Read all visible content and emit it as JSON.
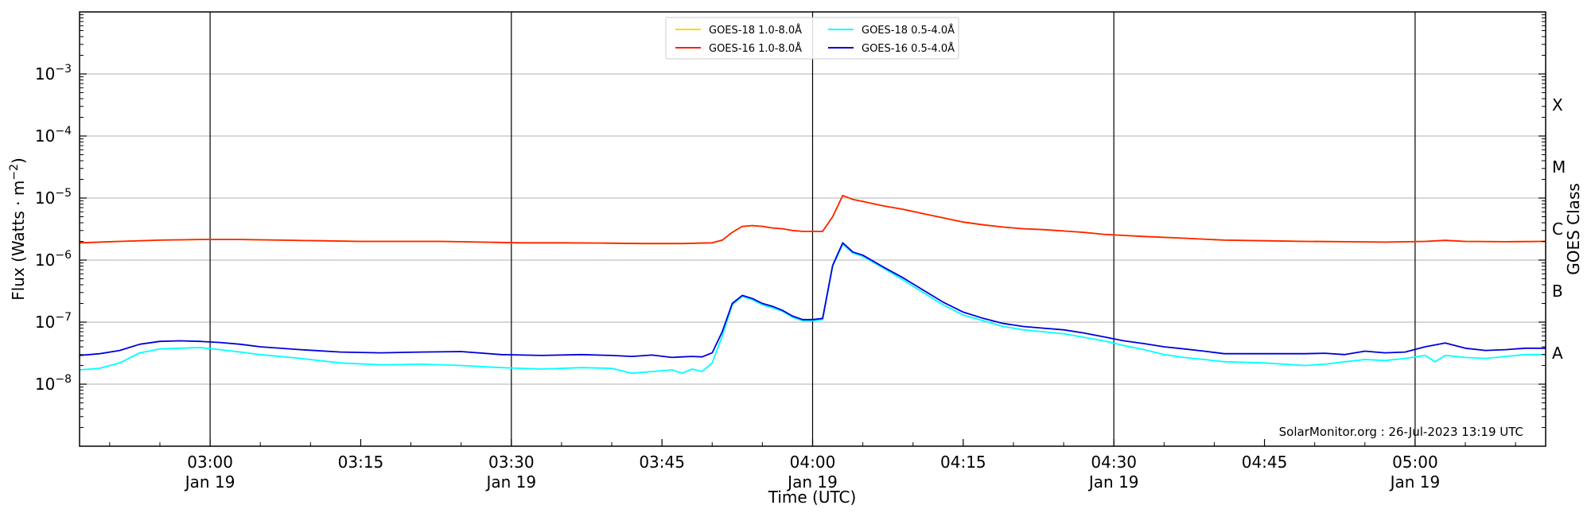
{
  "chart_data": {
    "type": "line",
    "xlabel": "Time (UTC)",
    "ylabel": "Flux (Watts · m",
    "ylabel_exponent": "−2",
    "ylabel_close": ")",
    "y2label": "GOES Class",
    "yscale": "log",
    "xlim": [
      "2023-01-19T02:47",
      "2023-01-19T05:13"
    ],
    "ylim": [
      1e-09,
      0.01
    ],
    "grid": "horizontal at decades",
    "legend_position": "top-center",
    "watermark": "SolarMonitor.org : 26-Jul-2023 13:19 UTC",
    "y_ticks": [
      {
        "value": 1e-08,
        "base": "10",
        "exp": "−8"
      },
      {
        "value": 1e-07,
        "base": "10",
        "exp": "−7"
      },
      {
        "value": 1e-06,
        "base": "10",
        "exp": "−6"
      },
      {
        "value": 1e-05,
        "base": "10",
        "exp": "−5"
      },
      {
        "value": 0.0001,
        "base": "10",
        "exp": "−4"
      },
      {
        "value": 0.001,
        "base": "10",
        "exp": "−3"
      }
    ],
    "x_ticks": [
      {
        "time": "03:00",
        "line1": "03:00",
        "line2": "Jan 19"
      },
      {
        "time": "03:15",
        "line1": "03:15",
        "line2": ""
      },
      {
        "time": "03:30",
        "line1": "03:30",
        "line2": "Jan 19"
      },
      {
        "time": "03:45",
        "line1": "03:45",
        "line2": ""
      },
      {
        "time": "04:00",
        "line1": "04:00",
        "line2": "Jan 19"
      },
      {
        "time": "04:15",
        "line1": "04:15",
        "line2": ""
      },
      {
        "time": "04:30",
        "line1": "04:30",
        "line2": "Jan 19"
      },
      {
        "time": "04:45",
        "line1": "04:45",
        "line2": ""
      },
      {
        "time": "05:00",
        "line1": "05:00",
        "line2": "Jan 19"
      }
    ],
    "vertical_lines": [
      "03:00",
      "03:30",
      "04:00",
      "04:30",
      "05:00"
    ],
    "classes": [
      {
        "label": "A",
        "value": 3.16e-08
      },
      {
        "label": "B",
        "value": 3.16e-07
      },
      {
        "label": "C",
        "value": 3.16e-06
      },
      {
        "label": "M",
        "value": 3.16e-05
      },
      {
        "label": "X",
        "value": 0.000316
      }
    ],
    "legend": [
      {
        "label": "GOES-18 1.0-8.0Å",
        "color": "#ffd700"
      },
      {
        "label": "GOES-16 1.0-8.0Å",
        "color": "#ff2200"
      },
      {
        "label": "GOES-18 0.5-4.0Å",
        "color": "#00ffff"
      },
      {
        "label": "GOES-16 0.5-4.0Å",
        "color": "#0000dd"
      }
    ],
    "series": [
      {
        "name": "GOES-18 1.0-8.0Å",
        "color": "#ffd700",
        "x": [
          "02:47",
          "02:51",
          "02:55",
          "02:59",
          "03:03",
          "03:07",
          "03:11",
          "03:15",
          "03:19",
          "03:23",
          "03:27",
          "03:31",
          "03:35",
          "03:39",
          "03:43",
          "03:47",
          "03:50",
          "03:51",
          "03:52",
          "03:53",
          "03:54",
          "03:55",
          "03:56",
          "03:57",
          "03:58",
          "03:59",
          "04:00",
          "04:01",
          "04:02",
          "04:03",
          "04:04",
          "04:05",
          "04:07",
          "04:09",
          "04:11",
          "04:13",
          "04:15",
          "04:17",
          "04:19",
          "04:21",
          "04:23",
          "04:25",
          "04:27",
          "04:29",
          "04:31",
          "04:33",
          "04:37",
          "04:41",
          "04:45",
          "04:49",
          "04:53",
          "04:57",
          "05:01",
          "05:03",
          "05:05",
          "05:09",
          "05:13"
        ],
        "y": [
          1.9e-06,
          2e-06,
          2.1e-06,
          2.15e-06,
          2.15e-06,
          2.1e-06,
          2.05e-06,
          2e-06,
          2e-06,
          2e-06,
          1.95e-06,
          1.9e-06,
          1.9e-06,
          1.88e-06,
          1.85e-06,
          1.85e-06,
          1.9e-06,
          2.1e-06,
          2.8e-06,
          3.5e-06,
          3.6e-06,
          3.5e-06,
          3.3e-06,
          3.2e-06,
          3e-06,
          2.9e-06,
          2.9e-06,
          2.9e-06,
          5e-06,
          1.1e-05,
          9.5e-06,
          8.8e-06,
          7.5e-06,
          6.6e-06,
          5.6e-06,
          4.8e-06,
          4.1e-06,
          3.7e-06,
          3.4e-06,
          3.2e-06,
          3.1e-06,
          2.95e-06,
          2.8e-06,
          2.6e-06,
          2.5e-06,
          2.4e-06,
          2.25e-06,
          2.1e-06,
          2.05e-06,
          2e-06,
          1.98e-06,
          1.95e-06,
          2e-06,
          2.08e-06,
          2e-06,
          1.98e-06,
          2e-06
        ]
      },
      {
        "name": "GOES-16 1.0-8.0Å",
        "color": "#ff2200",
        "x": [
          "02:47",
          "02:51",
          "02:55",
          "02:59",
          "03:03",
          "03:07",
          "03:11",
          "03:15",
          "03:19",
          "03:23",
          "03:27",
          "03:31",
          "03:35",
          "03:39",
          "03:43",
          "03:47",
          "03:50",
          "03:51",
          "03:52",
          "03:53",
          "03:54",
          "03:55",
          "03:56",
          "03:57",
          "03:58",
          "03:59",
          "04:00",
          "04:01",
          "04:02",
          "04:03",
          "04:04",
          "04:05",
          "04:07",
          "04:09",
          "04:11",
          "04:13",
          "04:15",
          "04:17",
          "04:19",
          "04:21",
          "04:23",
          "04:25",
          "04:27",
          "04:29",
          "04:31",
          "04:33",
          "04:37",
          "04:41",
          "04:45",
          "04:49",
          "04:53",
          "04:57",
          "05:01",
          "05:03",
          "05:05",
          "05:09",
          "05:13"
        ],
        "y": [
          1.9e-06,
          2e-06,
          2.1e-06,
          2.15e-06,
          2.15e-06,
          2.1e-06,
          2.05e-06,
          2e-06,
          2e-06,
          2e-06,
          1.95e-06,
          1.9e-06,
          1.9e-06,
          1.88e-06,
          1.85e-06,
          1.85e-06,
          1.9e-06,
          2.1e-06,
          2.8e-06,
          3.5e-06,
          3.6e-06,
          3.5e-06,
          3.3e-06,
          3.2e-06,
          3e-06,
          2.9e-06,
          2.9e-06,
          2.9e-06,
          5e-06,
          1.1e-05,
          9.5e-06,
          8.8e-06,
          7.5e-06,
          6.6e-06,
          5.6e-06,
          4.8e-06,
          4.1e-06,
          3.7e-06,
          3.4e-06,
          3.2e-06,
          3.1e-06,
          2.95e-06,
          2.8e-06,
          2.6e-06,
          2.5e-06,
          2.4e-06,
          2.25e-06,
          2.1e-06,
          2.05e-06,
          2e-06,
          1.98e-06,
          1.95e-06,
          2e-06,
          2.08e-06,
          2e-06,
          1.98e-06,
          2e-06
        ]
      },
      {
        "name": "GOES-18 0.5-4.0Å",
        "color": "#00ffff",
        "x": [
          "02:47",
          "02:49",
          "02:51",
          "02:53",
          "02:55",
          "02:57",
          "02:59",
          "03:01",
          "03:03",
          "03:05",
          "03:09",
          "03:13",
          "03:17",
          "03:21",
          "03:25",
          "03:29",
          "03:33",
          "03:37",
          "03:40",
          "03:42",
          "03:44",
          "03:46",
          "03:47",
          "03:48",
          "03:49",
          "03:50",
          "03:51",
          "03:52",
          "03:53",
          "03:54",
          "03:55",
          "03:56",
          "03:57",
          "03:58",
          "03:59",
          "04:00",
          "04:01",
          "04:02",
          "04:03",
          "04:04",
          "04:05",
          "04:07",
          "04:09",
          "04:11",
          "04:13",
          "04:15",
          "04:17",
          "04:19",
          "04:21",
          "04:23",
          "04:25",
          "04:27",
          "04:29",
          "04:31",
          "04:33",
          "04:35",
          "04:37",
          "04:39",
          "04:41",
          "04:45",
          "04:49",
          "04:51",
          "04:53",
          "04:55",
          "04:57",
          "04:59",
          "05:01",
          "05:02",
          "05:03",
          "05:05",
          "05:07",
          "05:09",
          "05:11",
          "05:13"
        ],
        "y": [
          1.7e-08,
          1.8e-08,
          2.2e-08,
          3.2e-08,
          3.7e-08,
          3.8e-08,
          3.9e-08,
          3.6e-08,
          3.3e-08,
          3e-08,
          2.6e-08,
          2.2e-08,
          2.05e-08,
          2.1e-08,
          2e-08,
          1.85e-08,
          1.75e-08,
          1.85e-08,
          1.8e-08,
          1.5e-08,
          1.6e-08,
          1.7e-08,
          1.5e-08,
          1.75e-08,
          1.6e-08,
          2.2e-08,
          6e-08,
          1.9e-07,
          2.6e-07,
          2.3e-07,
          1.9e-07,
          1.7e-07,
          1.5e-07,
          1.2e-07,
          1.05e-07,
          1.05e-07,
          1.1e-07,
          8e-07,
          1.8e-06,
          1.3e-06,
          1.15e-06,
          7.5e-07,
          4.8e-07,
          3e-07,
          1.9e-07,
          1.3e-07,
          1.05e-07,
          8.5e-08,
          7.5e-08,
          7e-08,
          6.5e-08,
          5.7e-08,
          5e-08,
          4.2e-08,
          3.6e-08,
          3e-08,
          2.7e-08,
          2.5e-08,
          2.3e-08,
          2.2e-08,
          2e-08,
          2.1e-08,
          2.3e-08,
          2.5e-08,
          2.4e-08,
          2.6e-08,
          2.9e-08,
          2.3e-08,
          2.9e-08,
          2.7e-08,
          2.6e-08,
          2.8e-08,
          3e-08,
          3e-08
        ]
      },
      {
        "name": "GOES-16 0.5-4.0Å",
        "color": "#0000dd",
        "x": [
          "02:47",
          "02:49",
          "02:51",
          "02:53",
          "02:55",
          "02:57",
          "02:59",
          "03:01",
          "03:03",
          "03:05",
          "03:09",
          "03:13",
          "03:17",
          "03:21",
          "03:25",
          "03:29",
          "03:33",
          "03:37",
          "03:40",
          "03:42",
          "03:44",
          "03:46",
          "03:47",
          "03:48",
          "03:49",
          "03:50",
          "03:51",
          "03:52",
          "03:53",
          "03:54",
          "03:55",
          "03:56",
          "03:57",
          "03:58",
          "03:59",
          "04:00",
          "04:01",
          "04:02",
          "04:03",
          "04:04",
          "04:05",
          "04:07",
          "04:09",
          "04:11",
          "04:13",
          "04:15",
          "04:17",
          "04:19",
          "04:21",
          "04:23",
          "04:25",
          "04:27",
          "04:29",
          "04:31",
          "04:33",
          "04:35",
          "04:37",
          "04:39",
          "04:41",
          "04:45",
          "04:49",
          "04:51",
          "04:53",
          "04:55",
          "04:57",
          "04:59",
          "05:01",
          "05:02",
          "05:03",
          "05:05",
          "05:07",
          "05:09",
          "05:11",
          "05:13"
        ],
        "y": [
          2.9e-08,
          3.1e-08,
          3.5e-08,
          4.4e-08,
          4.9e-08,
          5e-08,
          4.9e-08,
          4.7e-08,
          4.4e-08,
          4e-08,
          3.6e-08,
          3.3e-08,
          3.2e-08,
          3.3e-08,
          3.35e-08,
          3e-08,
          2.9e-08,
          3e-08,
          2.9e-08,
          2.8e-08,
          2.95e-08,
          2.7e-08,
          2.75e-08,
          2.8e-08,
          2.75e-08,
          3.2e-08,
          7e-08,
          2e-07,
          2.7e-07,
          2.4e-07,
          2e-07,
          1.8e-07,
          1.55e-07,
          1.25e-07,
          1.1e-07,
          1.1e-07,
          1.15e-07,
          8.2e-07,
          1.9e-06,
          1.35e-06,
          1.2e-06,
          7.8e-07,
          5.2e-07,
          3.3e-07,
          2.1e-07,
          1.45e-07,
          1.15e-07,
          9.5e-08,
          8.5e-08,
          8e-08,
          7.5e-08,
          6.7e-08,
          5.8e-08,
          5e-08,
          4.5e-08,
          4e-08,
          3.7e-08,
          3.4e-08,
          3.1e-08,
          3.1e-08,
          3.1e-08,
          3.15e-08,
          3e-08,
          3.4e-08,
          3.2e-08,
          3.3e-08,
          4e-08,
          4.3e-08,
          4.6e-08,
          3.8e-08,
          3.5e-08,
          3.6e-08,
          3.8e-08,
          3.8e-08
        ]
      }
    ]
  }
}
